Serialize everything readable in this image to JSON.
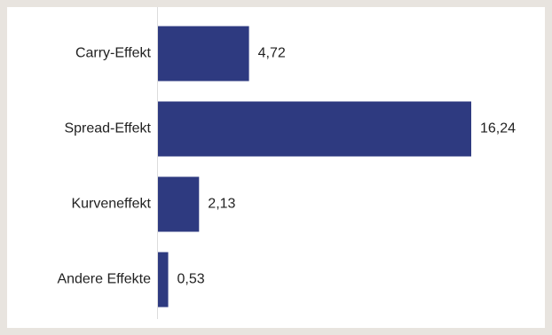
{
  "chart_data": {
    "type": "bar",
    "orientation": "horizontal",
    "categories": [
      "Carry-Effekt",
      "Spread-Effekt",
      "Kurveneffekt",
      "Andere Effekte"
    ],
    "values": [
      4.72,
      16.24,
      2.13,
      0.53
    ],
    "value_labels": [
      "4,72",
      "16,24",
      "2,13",
      "0,53"
    ],
    "title": "",
    "xlabel": "",
    "ylabel": "",
    "xlim": [
      0,
      16.24
    ],
    "grid": false,
    "legend": "none",
    "bar_color": "#2e3a80",
    "axis_color": "#dcdcdc"
  }
}
